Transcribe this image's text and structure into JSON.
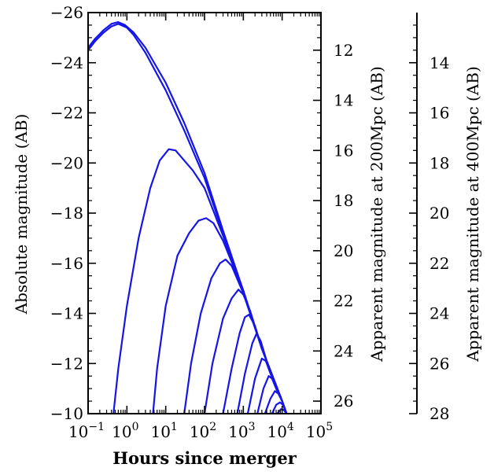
{
  "chart_data": {
    "type": "line",
    "xlabel": "Hours since merger",
    "ylabel": "Absolute magnitude (AB)",
    "x_scale": "log",
    "xlim": [
      0.1,
      100000
    ],
    "ylim": [
      -10,
      -26
    ],
    "x_ticks": [
      {
        "value": 0.1,
        "base": "10",
        "exp": "−1"
      },
      {
        "value": 1,
        "base": "10",
        "exp": "0"
      },
      {
        "value": 10,
        "base": "10",
        "exp": "1"
      },
      {
        "value": 100,
        "base": "10",
        "exp": "2"
      },
      {
        "value": 1000,
        "base": "10",
        "exp": "3"
      },
      {
        "value": 10000,
        "base": "10",
        "exp": "4"
      },
      {
        "value": 100000,
        "base": "10",
        "exp": "5"
      }
    ],
    "y_ticks": [
      {
        "value": -10,
        "label": "−10"
      },
      {
        "value": -12,
        "label": "−12"
      },
      {
        "value": -14,
        "label": "−14"
      },
      {
        "value": -16,
        "label": "−16"
      },
      {
        "value": -18,
        "label": "−18"
      },
      {
        "value": -20,
        "label": "−20"
      },
      {
        "value": -22,
        "label": "−22"
      },
      {
        "value": -24,
        "label": "−24"
      },
      {
        "value": -26,
        "label": "−26"
      }
    ],
    "right_axis_1": {
      "label": "Apparent magnitude at 200Mpc (AB)",
      "ticks": [
        "12",
        "14",
        "16",
        "18",
        "20",
        "22",
        "24",
        "26"
      ],
      "tick_values": [
        12,
        14,
        16,
        18,
        20,
        22,
        24,
        26
      ],
      "offset": 36.5
    },
    "right_axis_2": {
      "label": "Apparent magnitude at 400Mpc (AB)",
      "ticks": [
        "14",
        "16",
        "18",
        "20",
        "22",
        "24",
        "26",
        "28"
      ],
      "tick_values": [
        14,
        16,
        18,
        20,
        22,
        24,
        26,
        28
      ],
      "offset": 38.0
    },
    "line_color": "#1515e8",
    "envelope": [
      {
        "x": 1.2,
        "y": -25.3
      },
      {
        "x": 3,
        "y": -24.5
      },
      {
        "x": 10,
        "y": -23.0
      },
      {
        "x": 30,
        "y": -21.5
      },
      {
        "x": 100,
        "y": -19.5
      },
      {
        "x": 300,
        "y": -17.2
      },
      {
        "x": 1000,
        "y": -14.9
      },
      {
        "x": 3000,
        "y": -12.6
      },
      {
        "x": 10000,
        "y": -10.5
      },
      {
        "x": 13000,
        "y": -10.0
      }
    ],
    "series": [
      {
        "values": [
          {
            "x": 0.1,
            "y": -24.6
          },
          {
            "x": 0.15,
            "y": -24.95
          },
          {
            "x": 0.25,
            "y": -25.3
          },
          {
            "x": 0.4,
            "y": -25.55
          },
          {
            "x": 0.6,
            "y": -25.62
          },
          {
            "x": 0.9,
            "y": -25.5
          },
          {
            "x": 1.5,
            "y": -25.2
          },
          {
            "x": 3,
            "y": -24.6
          },
          {
            "x": 10,
            "y": -23.2
          },
          {
            "x": 30,
            "y": -21.6
          },
          {
            "x": 100,
            "y": -19.6
          },
          {
            "x": 300,
            "y": -17.3
          },
          {
            "x": 1000,
            "y": -14.9
          },
          {
            "x": 3000,
            "y": -12.6
          },
          {
            "x": 10000,
            "y": -10.5
          },
          {
            "x": 13000,
            "y": -10.0
          }
        ]
      },
      {
        "values": [
          {
            "x": 0.1,
            "y": -24.5
          },
          {
            "x": 0.15,
            "y": -24.85
          },
          {
            "x": 0.25,
            "y": -25.2
          },
          {
            "x": 0.4,
            "y": -25.45
          },
          {
            "x": 0.6,
            "y": -25.55
          },
          {
            "x": 1.0,
            "y": -25.4
          },
          {
            "x": 1.5,
            "y": -25.1
          },
          {
            "x": 3,
            "y": -24.4
          },
          {
            "x": 10,
            "y": -22.9
          },
          {
            "x": 30,
            "y": -21.3
          },
          {
            "x": 100,
            "y": -19.4
          },
          {
            "x": 300,
            "y": -17.2
          },
          {
            "x": 1000,
            "y": -14.9
          },
          {
            "x": 3000,
            "y": -12.6
          },
          {
            "x": 10000,
            "y": -10.5
          },
          {
            "x": 13000,
            "y": -10.0
          }
        ]
      },
      {
        "values": [
          {
            "x": 0.45,
            "y": -10.0
          },
          {
            "x": 0.6,
            "y": -11.8
          },
          {
            "x": 1.0,
            "y": -14.3
          },
          {
            "x": 2,
            "y": -17.0
          },
          {
            "x": 4,
            "y": -19.0
          },
          {
            "x": 7,
            "y": -20.1
          },
          {
            "x": 12,
            "y": -20.55
          },
          {
            "x": 18,
            "y": -20.5
          },
          {
            "x": 30,
            "y": -20.1
          },
          {
            "x": 50,
            "y": -19.7
          },
          {
            "x": 100,
            "y": -19.0
          },
          {
            "x": 300,
            "y": -17.1
          },
          {
            "x": 1000,
            "y": -14.9
          },
          {
            "x": 3000,
            "y": -12.6
          },
          {
            "x": 10000,
            "y": -10.5
          },
          {
            "x": 13000,
            "y": -10.0
          }
        ]
      },
      {
        "values": [
          {
            "x": 4.7,
            "y": -10.0
          },
          {
            "x": 6,
            "y": -11.8
          },
          {
            "x": 10,
            "y": -14.3
          },
          {
            "x": 20,
            "y": -16.3
          },
          {
            "x": 40,
            "y": -17.2
          },
          {
            "x": 70,
            "y": -17.7
          },
          {
            "x": 110,
            "y": -17.8
          },
          {
            "x": 170,
            "y": -17.6
          },
          {
            "x": 300,
            "y": -16.9
          },
          {
            "x": 1000,
            "y": -14.9
          },
          {
            "x": 3000,
            "y": -12.6
          },
          {
            "x": 10000,
            "y": -10.5
          },
          {
            "x": 13000,
            "y": -10.0
          }
        ]
      },
      {
        "values": [
          {
            "x": 30,
            "y": -10.0
          },
          {
            "x": 45,
            "y": -12.0
          },
          {
            "x": 80,
            "y": -14.0
          },
          {
            "x": 150,
            "y": -15.4
          },
          {
            "x": 250,
            "y": -16.0
          },
          {
            "x": 350,
            "y": -16.15
          },
          {
            "x": 500,
            "y": -15.9
          },
          {
            "x": 1000,
            "y": -14.8
          },
          {
            "x": 3000,
            "y": -12.6
          },
          {
            "x": 10000,
            "y": -10.5
          },
          {
            "x": 13000,
            "y": -10.0
          }
        ]
      },
      {
        "values": [
          {
            "x": 100,
            "y": -10.0
          },
          {
            "x": 160,
            "y": -12.0
          },
          {
            "x": 300,
            "y": -13.8
          },
          {
            "x": 500,
            "y": -14.6
          },
          {
            "x": 750,
            "y": -14.95
          },
          {
            "x": 1000,
            "y": -14.75
          },
          {
            "x": 1500,
            "y": -14.1
          },
          {
            "x": 3000,
            "y": -12.6
          },
          {
            "x": 10000,
            "y": -10.5
          },
          {
            "x": 13000,
            "y": -10.0
          }
        ]
      },
      {
        "values": [
          {
            "x": 300,
            "y": -10.0
          },
          {
            "x": 500,
            "y": -11.8
          },
          {
            "x": 800,
            "y": -13.2
          },
          {
            "x": 1100,
            "y": -13.85
          },
          {
            "x": 1400,
            "y": -13.95
          },
          {
            "x": 2000,
            "y": -13.5
          },
          {
            "x": 3000,
            "y": -12.6
          },
          {
            "x": 10000,
            "y": -10.5
          },
          {
            "x": 13000,
            "y": -10.0
          }
        ]
      },
      {
        "values": [
          {
            "x": 700,
            "y": -10.0
          },
          {
            "x": 1100,
            "y": -11.6
          },
          {
            "x": 1700,
            "y": -12.8
          },
          {
            "x": 2200,
            "y": -13.2
          },
          {
            "x": 2800,
            "y": -12.9
          },
          {
            "x": 4000,
            "y": -12.1
          },
          {
            "x": 10000,
            "y": -10.5
          },
          {
            "x": 13000,
            "y": -10.0
          }
        ]
      },
      {
        "values": [
          {
            "x": 1300,
            "y": -10.0
          },
          {
            "x": 2000,
            "y": -11.4
          },
          {
            "x": 3000,
            "y": -12.2
          },
          {
            "x": 3800,
            "y": -12.1
          },
          {
            "x": 5000,
            "y": -11.6
          },
          {
            "x": 10000,
            "y": -10.5
          },
          {
            "x": 13000,
            "y": -10.0
          }
        ]
      },
      {
        "values": [
          {
            "x": 2300,
            "y": -10.0
          },
          {
            "x": 3300,
            "y": -11.0
          },
          {
            "x": 4500,
            "y": -11.5
          },
          {
            "x": 5500,
            "y": -11.4
          },
          {
            "x": 7000,
            "y": -11.0
          },
          {
            "x": 10000,
            "y": -10.5
          },
          {
            "x": 13000,
            "y": -10.0
          }
        ]
      },
      {
        "values": [
          {
            "x": 3600,
            "y": -10.0
          },
          {
            "x": 5000,
            "y": -10.6
          },
          {
            "x": 6500,
            "y": -10.9
          },
          {
            "x": 8000,
            "y": -10.8
          },
          {
            "x": 10000,
            "y": -10.5
          },
          {
            "x": 13000,
            "y": -10.0
          }
        ]
      },
      {
        "values": [
          {
            "x": 5500,
            "y": -10.0
          },
          {
            "x": 7000,
            "y": -10.35
          },
          {
            "x": 8800,
            "y": -10.45
          },
          {
            "x": 10500,
            "y": -10.35
          },
          {
            "x": 13000,
            "y": -10.0
          }
        ]
      },
      {
        "values": [
          {
            "x": 7500,
            "y": -10.0
          },
          {
            "x": 9300,
            "y": -10.18
          },
          {
            "x": 11000,
            "y": -10.15
          },
          {
            "x": 13000,
            "y": -10.0
          }
        ]
      }
    ]
  }
}
